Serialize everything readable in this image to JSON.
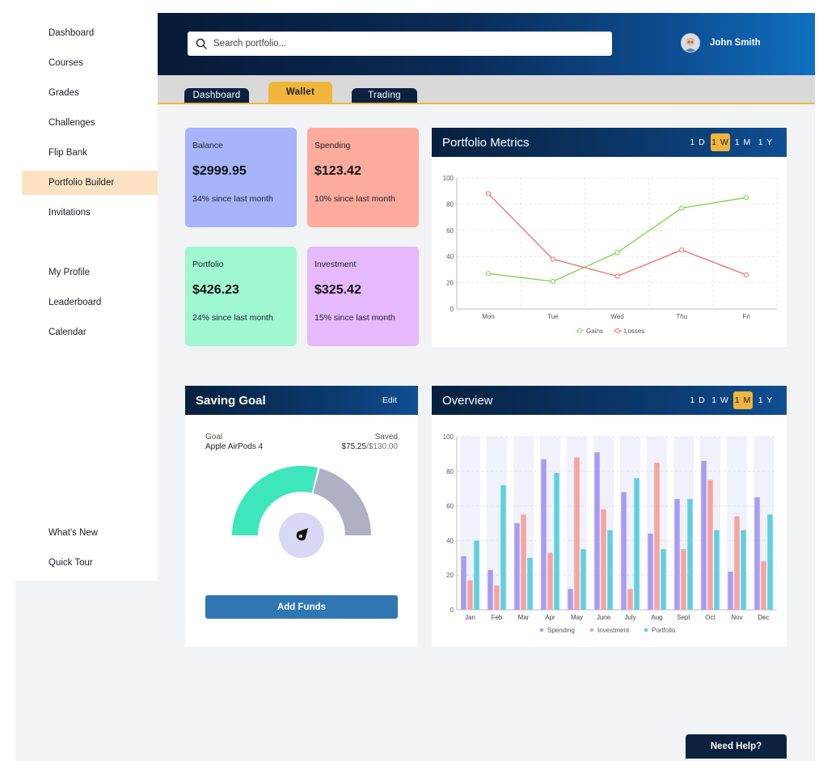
{
  "sidebar": {
    "items": [
      {
        "label": "Dashboard"
      },
      {
        "label": "Courses"
      },
      {
        "label": "Grades"
      },
      {
        "label": "Challenges"
      },
      {
        "label": "Flip Bank"
      },
      {
        "label": "Portfolio Builder",
        "active": true
      },
      {
        "label": "Invitations"
      },
      {
        "label": "My Profile"
      },
      {
        "label": "Leaderboard"
      },
      {
        "label": "Calendar"
      },
      {
        "label": "What's New"
      },
      {
        "label": "Quick Tour"
      }
    ]
  },
  "header": {
    "search_placeholder": "Search portfolio...",
    "user_name": "John Smith"
  },
  "tabs": [
    {
      "label": "Dashboard"
    },
    {
      "label": "Wallet",
      "active": true
    },
    {
      "label": "Trading"
    }
  ],
  "cards": [
    {
      "label": "Balance",
      "value": "$2999.95",
      "delta": "34% since last month",
      "color": "#a6b4fc"
    },
    {
      "label": "Spending",
      "value": "$123.42",
      "delta": "10% since last month",
      "color": "#fdab9c"
    },
    {
      "label": "Portfolio",
      "value": "$426.23",
      "delta": "24% since last month",
      "color": "#9ff8d2"
    },
    {
      "label": "Investment",
      "value": "$325.42",
      "delta": "15% since last month",
      "color": "#e5b9fb"
    }
  ],
  "metrics": {
    "title": "Portfolio Metrics",
    "ranges": [
      "1 D",
      "1 W",
      "1 M",
      "1 Y"
    ],
    "active_range": "1 W"
  },
  "overview": {
    "title": "Overview",
    "ranges": [
      "1 D",
      "1 W",
      "1 M",
      "1 Y"
    ],
    "active_range": "1 M"
  },
  "saving_goal": {
    "title": "Saving Goal",
    "edit_label": "Edit",
    "goal_label": "Goal",
    "goal_value": "Apple AirPods 4",
    "saved_label": "Saved",
    "saved_amount": "$75.25",
    "saved_total": "/$130.00",
    "progress": 0.58,
    "button_label": "Add Funds"
  },
  "help": {
    "label": "Need Help?"
  },
  "colors": {
    "gains": "#7bd148",
    "losses": "#f06b6b",
    "spending": "#a79bf2",
    "investment": "#f7a39e",
    "portfolio": "#5ed0de",
    "gauge_fill": "#3ee6bc",
    "gauge_rest": "#b0b0c4"
  },
  "chart_data": [
    {
      "type": "line",
      "title": "Portfolio Metrics",
      "categories": [
        "Mon",
        "Tue",
        "Wed",
        "Thu",
        "Fri"
      ],
      "series": [
        {
          "name": "Gains",
          "values": [
            27,
            21,
            43,
            77,
            85
          ]
        },
        {
          "name": "Losses",
          "values": [
            88,
            38,
            25,
            45,
            26
          ]
        }
      ],
      "ylim": [
        0,
        100
      ],
      "yticks": [
        0,
        20,
        40,
        60,
        80,
        100
      ],
      "legend": "bottom"
    },
    {
      "type": "bar",
      "title": "Overview",
      "categories": [
        "Jan",
        "Feb",
        "Mar",
        "Apr",
        "May",
        "June",
        "July",
        "Aug",
        "Sept",
        "Oct",
        "Nov",
        "Dec"
      ],
      "series": [
        {
          "name": "Spending",
          "values": [
            31,
            23,
            50,
            87,
            12,
            91,
            68,
            44,
            64,
            86,
            22,
            65
          ]
        },
        {
          "name": "Investment",
          "values": [
            17,
            14,
            55,
            33,
            88,
            58,
            12,
            85,
            35,
            75,
            54,
            28
          ]
        },
        {
          "name": "Portfolio",
          "values": [
            40,
            72,
            30,
            79,
            35,
            46,
            76,
            35,
            64,
            46,
            46,
            55
          ]
        }
      ],
      "ylim": [
        0,
        100
      ],
      "yticks": [
        0,
        20,
        40,
        60,
        80,
        100
      ],
      "legend": "bottom"
    }
  ]
}
